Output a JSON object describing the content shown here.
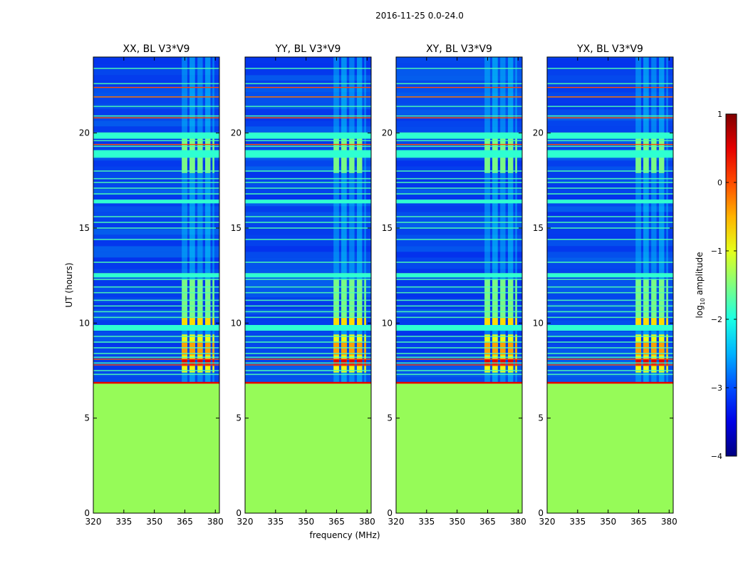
{
  "suptitle": "2016-11-25 0.0-24.0",
  "colors": {
    "background_fill": "#96fb58",
    "plateau_base": "#0a2ad8"
  },
  "chart_data": [
    {
      "type": "heatmap",
      "title": "XX, BL V3*V9",
      "xlabel": "",
      "ylabel": "UT (hours)",
      "xlim": [
        320,
        382
      ],
      "ylim": [
        0,
        24
      ],
      "xticks": [
        "320",
        "335",
        "350",
        "365",
        "380"
      ],
      "yticks": [
        "0",
        "5",
        "10",
        "15",
        "20"
      ]
    },
    {
      "type": "heatmap",
      "title": "YY, BL V3*V9",
      "xlabel": "frequency (MHz)",
      "ylabel": "",
      "xlim": [
        320,
        382
      ],
      "ylim": [
        0,
        24
      ],
      "xticks": [
        "320",
        "335",
        "350",
        "365",
        "380"
      ],
      "yticks": [
        "0",
        "5",
        "10",
        "15",
        "20"
      ]
    },
    {
      "type": "heatmap",
      "title": "XY, BL V3*V9",
      "xlabel": "",
      "ylabel": "",
      "xlim": [
        320,
        382
      ],
      "ylim": [
        0,
        24
      ],
      "xticks": [
        "320",
        "335",
        "350",
        "365",
        "380"
      ],
      "yticks": [
        "0",
        "5",
        "10",
        "15",
        "20"
      ]
    },
    {
      "type": "heatmap",
      "title": "YX, BL V3*V9",
      "xlabel": "",
      "ylabel": "",
      "xlim": [
        320,
        382
      ],
      "ylim": [
        0,
        24
      ],
      "xticks": [
        "320",
        "335",
        "350",
        "365",
        "380"
      ],
      "yticks": [
        "0",
        "5",
        "10",
        "15",
        "20"
      ]
    }
  ],
  "colorbar": {
    "label_prefix": "log",
    "label_sub": "10",
    "label_suffix": " amplitude",
    "range": [
      -4,
      1
    ],
    "ticks": [
      "1",
      "0",
      "−1",
      "−2",
      "−3",
      "−4"
    ]
  },
  "data_features": {
    "no_data_below_hour": 6.85,
    "rfi_band_mhz": [
      363.5,
      379.5
    ],
    "rfi_strips_mhz": [
      [
        363.5,
        366.2
      ],
      [
        367.3,
        370.0
      ],
      [
        371.2,
        373.8
      ],
      [
        375.0,
        377.6
      ],
      [
        378.6,
        379.5
      ]
    ],
    "horizontal_lines_hours": [
      7.3,
      7.5,
      7.9,
      8.2,
      8.4,
      8.7,
      9.0,
      9.3,
      9.7,
      10.3,
      10.6,
      10.9,
      11.2,
      11.6,
      11.9,
      12.3,
      12.6,
      13.2,
      14.4,
      15.0,
      15.3,
      15.6,
      16.4,
      16.8,
      17.1,
      17.4,
      17.6,
      18.0,
      18.8,
      19.0,
      19.3,
      19.6,
      20.0,
      20.9,
      21.4,
      21.9,
      22.6,
      23.4
    ],
    "bright_bands_hours": [
      [
        9.6,
        9.9
      ],
      [
        12.4,
        12.6
      ],
      [
        16.3,
        16.5
      ],
      [
        18.7,
        19.1
      ],
      [
        19.7,
        20.0
      ]
    ],
    "orange_lines_hours": [
      7.8,
      8.1,
      19.4,
      20.8,
      21.9,
      22.4
    ],
    "red_row_hour": 7.85
  }
}
